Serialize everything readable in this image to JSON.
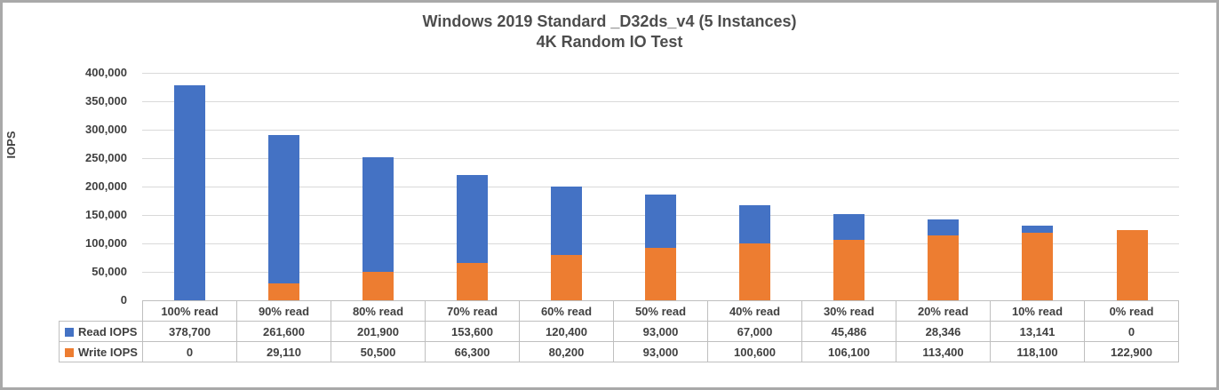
{
  "chart_data": {
    "type": "bar",
    "stacked": true,
    "title_line1": "Windows 2019 Standard _D32ds_v4 (5 Instances)",
    "title_line2": "4K Random IO Test",
    "ylabel": "IOPS",
    "xlabel": "",
    "ylim": [
      0,
      400000
    ],
    "ytick_step": 50000,
    "ytick_labels": [
      "0",
      "50,000",
      "100,000",
      "150,000",
      "200,000",
      "250,000",
      "300,000",
      "350,000",
      "400,000"
    ],
    "grid": true,
    "legend_position": "data-table-left",
    "categories": [
      "100% read",
      "90% read",
      "80% read",
      "70% read",
      "60% read",
      "50% read",
      "40% read",
      "30% read",
      "20% read",
      "10% read",
      "0% read"
    ],
    "series": [
      {
        "name": "Read IOPS",
        "color": "#4472C4",
        "values": [
          378700,
          261600,
          201900,
          153600,
          120400,
          93000,
          67000,
          45486,
          28346,
          13141,
          0
        ],
        "labels": [
          "378,700",
          "261,600",
          "201,900",
          "153,600",
          "120,400",
          "93,000",
          "67,000",
          "45,486",
          "28,346",
          "13,141",
          "0"
        ]
      },
      {
        "name": "Write IOPS",
        "color": "#ED7D31",
        "values": [
          0,
          29110,
          50500,
          66300,
          80200,
          93000,
          100600,
          106100,
          113400,
          118100,
          122900
        ],
        "labels": [
          "0",
          "29,110",
          "50,500",
          "66,300",
          "80,200",
          "93,000",
          "100,600",
          "106,100",
          "113,400",
          "118,100",
          "122,900"
        ]
      }
    ],
    "stack_order_bottom_to_top": [
      "Write IOPS",
      "Read IOPS"
    ]
  }
}
